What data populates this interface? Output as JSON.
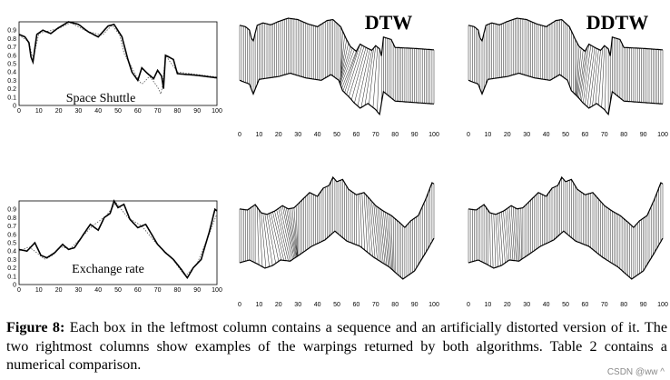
{
  "figure": {
    "panels": [
      {
        "id": "shuttle-seq",
        "row": 0,
        "col": 0,
        "label": "Space Shuttle"
      },
      {
        "id": "shuttle-dtw",
        "row": 0,
        "col": 1,
        "label": "DTW"
      },
      {
        "id": "shuttle-ddtw",
        "row": 0,
        "col": 2,
        "label": "DDTW"
      },
      {
        "id": "exchange-seq",
        "row": 1,
        "col": 0,
        "label": "Exchange rate"
      },
      {
        "id": "exchange-dtw",
        "row": 1,
        "col": 1,
        "label": ""
      },
      {
        "id": "exchange-ddtw",
        "row": 1,
        "col": 2,
        "label": ""
      }
    ],
    "x_ticks": [
      "0",
      "10",
      "20",
      "30",
      "40",
      "50",
      "60",
      "70",
      "80",
      "90",
      "100"
    ],
    "y_ticks": [
      "0",
      "0.1",
      "0.2",
      "0.3",
      "0.4",
      "0.5",
      "0.6",
      "0.7",
      "0.8",
      "0.9"
    ]
  },
  "caption": {
    "label": "Figure 8:",
    "text": " Each box in the leftmost column contains a sequence and an artificially distorted version of it. The two rightmost columns show examples of the warpings returned by both algorithms. Table 2 contains a numerical comparison."
  },
  "watermark": "CSDN @ww ^"
}
